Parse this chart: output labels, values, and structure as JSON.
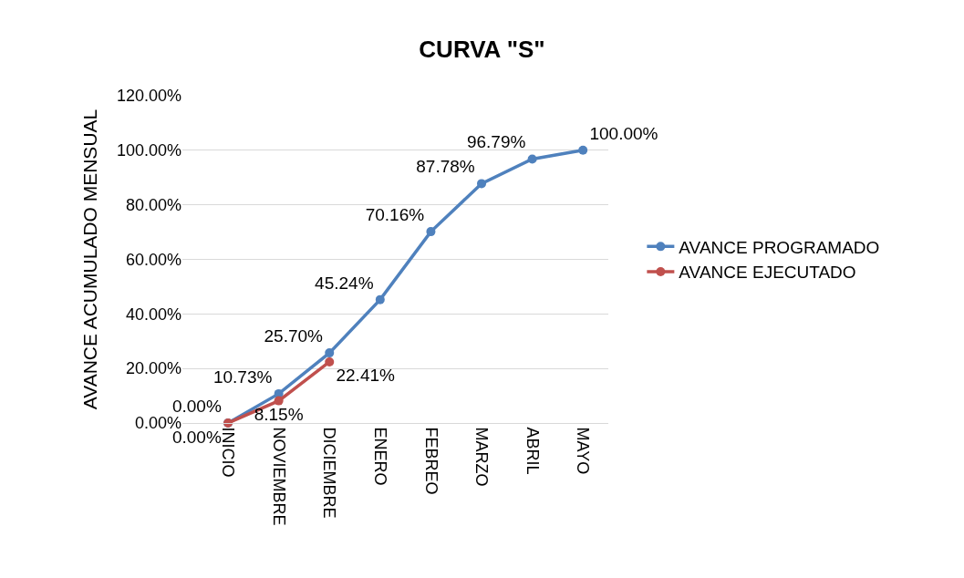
{
  "chart_data": {
    "type": "line",
    "title": "CURVA \"S\"",
    "ylabel": "AVANCE ACUMULADO MENSUAL",
    "categories": [
      "INICIO",
      "NOVIEMBRE",
      "DICIEMBRE",
      "ENERO",
      "FEBREO",
      "MARZO",
      "ABRIL",
      "MAYO"
    ],
    "series": [
      {
        "name": "AVANCE PROGRAMADO",
        "color": "#4f81bd",
        "values": [
          0,
          10.73,
          25.7,
          45.24,
          70.16,
          87.78,
          96.79,
          100
        ],
        "value_labels": [
          "0.00%",
          "10.73%",
          "25.70%",
          "45.24%",
          "70.16%",
          "87.78%",
          "96.79%",
          "100.00%"
        ]
      },
      {
        "name": "AVANCE EJECUTADO",
        "color": "#c0504d",
        "values": [
          0,
          8.15,
          22.41,
          null,
          null,
          null,
          null,
          null
        ],
        "value_labels": [
          "0.00%",
          "8.15%",
          "22.41%",
          null,
          null,
          null,
          null,
          null
        ]
      }
    ],
    "ylim": [
      0,
      120
    ],
    "yticks": [
      {
        "value": 0,
        "label": "0.00%"
      },
      {
        "value": 20,
        "label": "20.00%"
      },
      {
        "value": 40,
        "label": "40.00%"
      },
      {
        "value": 60,
        "label": "60.00%"
      },
      {
        "value": 80,
        "label": "80.00%"
      },
      {
        "value": 100,
        "label": "100.00%"
      },
      {
        "value": 120,
        "label": "120.00%"
      }
    ],
    "grid": "y",
    "legend": "right",
    "marker": "circle",
    "line_style": "solid"
  }
}
